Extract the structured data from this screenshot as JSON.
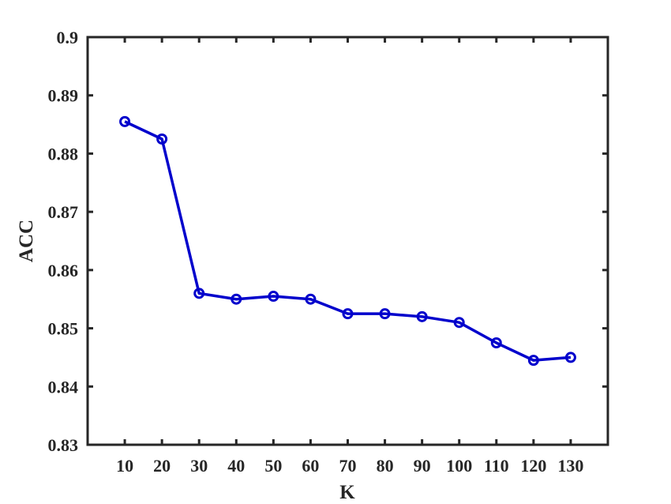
{
  "chart_data": {
    "type": "line",
    "title": "",
    "xlabel": "K",
    "ylabel": "ACC",
    "x": [
      10,
      20,
      30,
      40,
      50,
      60,
      70,
      80,
      90,
      100,
      110,
      120,
      130
    ],
    "x_ticks": [
      "10",
      "20",
      "30",
      "40",
      "50",
      "60",
      "70",
      "80",
      "90",
      "100",
      "110",
      "120",
      "130"
    ],
    "xlim": [
      0,
      140
    ],
    "ylim": [
      0.83,
      0.9
    ],
    "y_ticks": [
      "0.83",
      "0.84",
      "0.85",
      "0.86",
      "0.87",
      "0.88",
      "0.89",
      "0.9"
    ],
    "grid": false,
    "series": [
      {
        "values": [
          0.8855,
          0.8825,
          0.856,
          0.855,
          0.8555,
          0.855,
          0.8525,
          0.8525,
          0.852,
          0.851,
          0.8475,
          0.8445,
          0.845
        ],
        "color": "#0000cc",
        "marker": "circle"
      }
    ]
  }
}
